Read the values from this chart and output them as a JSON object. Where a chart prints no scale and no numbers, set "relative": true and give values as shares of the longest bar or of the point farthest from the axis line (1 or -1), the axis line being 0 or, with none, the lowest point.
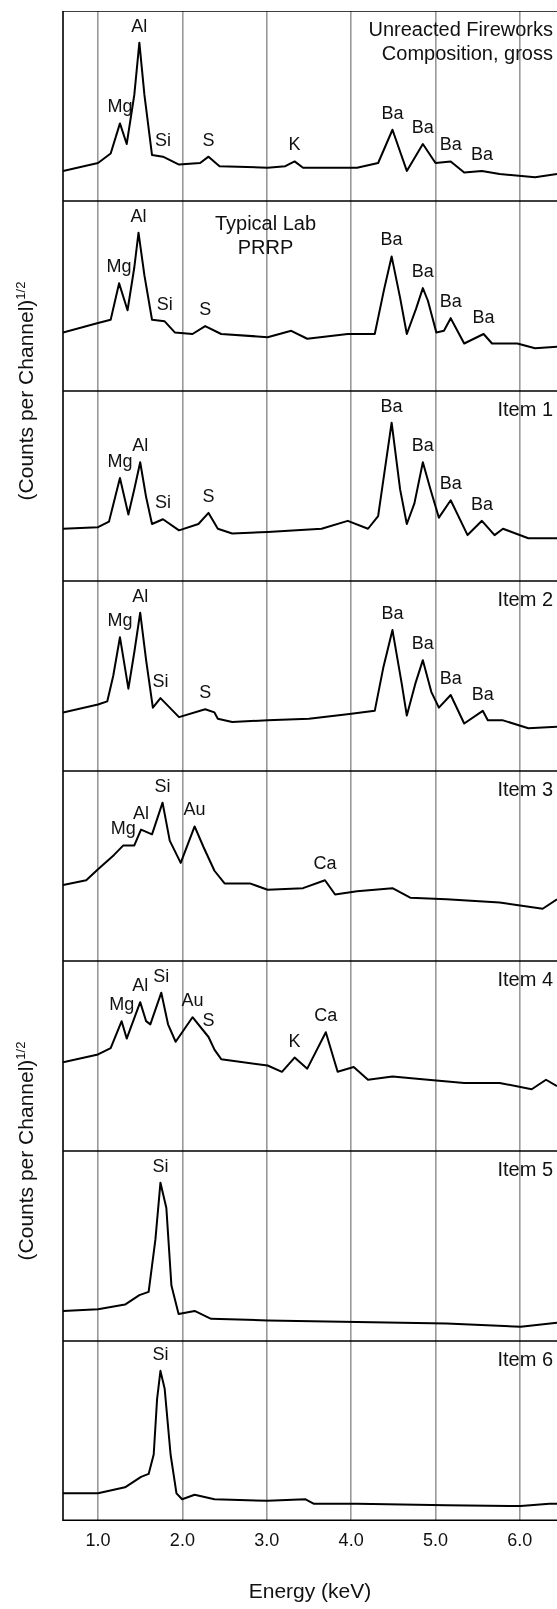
{
  "chart_data": [
    {
      "type": "line",
      "title": "Unreacted Fireworks Composition, gross",
      "relative": true,
      "color": "#000000",
      "grid": "x",
      "tick_labels": false,
      "xlim": [
        0.585,
        6.44
      ],
      "xticks": [
        1,
        2,
        3,
        4,
        5,
        6
      ],
      "x": [
        0.585,
        1.0,
        1.15,
        1.26,
        1.34,
        1.43,
        1.49,
        1.55,
        1.64,
        1.77,
        1.96,
        2.21,
        2.31,
        2.44,
        3.01,
        3.22,
        3.33,
        3.43,
        4.07,
        4.32,
        4.49,
        4.66,
        4.85,
        5.0,
        5.18,
        5.34,
        5.55,
        5.76,
        6.18,
        6.44
      ],
      "values": [
        0.19,
        0.24,
        0.3,
        0.49,
        0.36,
        0.67,
        1.0,
        0.67,
        0.29,
        0.28,
        0.23,
        0.24,
        0.28,
        0.22,
        0.21,
        0.22,
        0.25,
        0.21,
        0.21,
        0.24,
        0.45,
        0.19,
        0.36,
        0.24,
        0.25,
        0.18,
        0.19,
        0.17,
        0.15,
        0.17
      ],
      "annotations": [
        {
          "text": "Mg",
          "x": 1.26,
          "y": 0.49
        },
        {
          "text": "Al",
          "x": 1.49,
          "y": 1.0
        },
        {
          "text": "Si",
          "x": 1.77,
          "y": 0.28
        },
        {
          "text": "S",
          "x": 2.31,
          "y": 0.28
        },
        {
          "text": "K",
          "x": 3.33,
          "y": 0.25
        },
        {
          "text": "Ba",
          "x": 4.49,
          "y": 0.45
        },
        {
          "text": "Ba",
          "x": 4.85,
          "y": 0.36
        },
        {
          "text": "Ba",
          "x": 5.18,
          "y": 0.25
        },
        {
          "text": "Ba",
          "x": 5.55,
          "y": 0.19
        }
      ]
    },
    {
      "type": "line",
      "ylabel": "(Counts per Channel)$^{1/2}$",
      "relative": true,
      "color": "#000000",
      "grid": "x",
      "tick_labels": false,
      "xlim": [
        0.585,
        6.44
      ],
      "xticks": [
        1,
        2,
        3,
        4,
        5,
        6
      ],
      "x": [
        0.585,
        1.0,
        1.15,
        1.25,
        1.35,
        1.43,
        1.48,
        1.55,
        1.64,
        1.79,
        1.91,
        2.12,
        2.27,
        2.46,
        3.01,
        3.29,
        3.48,
        3.96,
        4.28,
        4.39,
        4.48,
        4.58,
        4.66,
        4.77,
        4.85,
        4.91,
        5.01,
        5.1,
        5.18,
        5.34,
        5.57,
        5.67,
        5.97,
        6.18,
        6.44
      ],
      "values": [
        0.37,
        0.43,
        0.45,
        0.68,
        0.51,
        0.78,
        1.0,
        0.73,
        0.45,
        0.44,
        0.37,
        0.36,
        0.41,
        0.36,
        0.34,
        0.38,
        0.33,
        0.36,
        0.36,
        0.64,
        0.85,
        0.59,
        0.36,
        0.52,
        0.65,
        0.57,
        0.37,
        0.38,
        0.46,
        0.3,
        0.36,
        0.3,
        0.3,
        0.27,
        0.28
      ],
      "annotations": [
        "Typical Lab PRRP",
        {
          "text": "Mg",
          "x": 1.25,
          "y": 0.68
        },
        {
          "text": "Al",
          "x": 1.48,
          "y": 1.0
        },
        {
          "text": "Si",
          "x": 1.79,
          "y": 0.44
        },
        {
          "text": "S",
          "x": 2.27,
          "y": 0.41
        },
        {
          "text": "Ba",
          "x": 4.48,
          "y": 0.85
        },
        {
          "text": "Ba",
          "x": 4.85,
          "y": 0.65
        },
        {
          "text": "Ba",
          "x": 5.18,
          "y": 0.46
        },
        {
          "text": "Ba",
          "x": 5.57,
          "y": 0.36
        }
      ]
    },
    {
      "type": "line",
      "title": "Item 1",
      "relative": true,
      "color": "#000000",
      "grid": "x",
      "tick_labels": false,
      "xlim": [
        0.585,
        6.44
      ],
      "xticks": [
        1,
        2,
        3,
        4,
        5,
        6
      ],
      "x": [
        0.585,
        1.0,
        1.13,
        1.26,
        1.36,
        1.43,
        1.5,
        1.57,
        1.64,
        1.77,
        1.96,
        2.19,
        2.31,
        2.42,
        2.59,
        3.01,
        3.65,
        3.96,
        4.2,
        4.32,
        4.48,
        4.58,
        4.66,
        4.75,
        4.85,
        4.94,
        5.04,
        5.18,
        5.38,
        5.55,
        5.7,
        5.8,
        6.1,
        6.44
      ],
      "values": [
        0.33,
        0.34,
        0.375,
        0.65,
        0.42,
        0.58,
        0.75,
        0.53,
        0.36,
        0.39,
        0.32,
        0.36,
        0.43,
        0.33,
        0.3,
        0.31,
        0.33,
        0.38,
        0.33,
        0.41,
        1.0,
        0.58,
        0.36,
        0.49,
        0.75,
        0.58,
        0.4,
        0.51,
        0.29,
        0.38,
        0.29,
        0.33,
        0.27,
        0.27
      ],
      "annotations": [
        {
          "text": "Mg",
          "x": 1.26,
          "y": 0.65
        },
        {
          "text": "Al",
          "x": 1.5,
          "y": 0.75
        },
        {
          "text": "Si",
          "x": 1.77,
          "y": 0.39
        },
        {
          "text": "S",
          "x": 2.31,
          "y": 0.43
        },
        {
          "text": "Ba",
          "x": 4.48,
          "y": 1.0
        },
        {
          "text": "Ba",
          "x": 4.85,
          "y": 0.75
        },
        {
          "text": "Ba",
          "x": 5.18,
          "y": 0.51
        },
        {
          "text": "Ba",
          "x": 5.55,
          "y": 0.38
        }
      ]
    },
    {
      "type": "line",
      "title": "Item 2",
      "relative": true,
      "color": "#000000",
      "grid": "x",
      "tick_labels": false,
      "xlim": [
        0.585,
        6.44
      ],
      "xticks": [
        1,
        2,
        3,
        4,
        5,
        6
      ],
      "x": [
        0.585,
        1.0,
        1.11,
        1.18,
        1.26,
        1.36,
        1.43,
        1.5,
        1.57,
        1.65,
        1.74,
        1.96,
        2.27,
        2.38,
        2.42,
        2.59,
        3.01,
        3.5,
        3.98,
        4.28,
        4.38,
        4.49,
        4.6,
        4.66,
        4.76,
        4.85,
        4.95,
        5.04,
        5.18,
        5.34,
        5.56,
        5.62,
        5.8,
        6.1,
        6.44
      ],
      "values": [
        0.37,
        0.42,
        0.44,
        0.6,
        0.845,
        0.52,
        0.75,
        1.0,
        0.7,
        0.4,
        0.46,
        0.34,
        0.39,
        0.37,
        0.33,
        0.31,
        0.32,
        0.33,
        0.36,
        0.38,
        0.65,
        0.89,
        0.55,
        0.35,
        0.55,
        0.7,
        0.5,
        0.4,
        0.48,
        0.3,
        0.38,
        0.32,
        0.32,
        0.27,
        0.28
      ],
      "annotations": [
        {
          "text": "Mg",
          "x": 1.26,
          "y": 0.845
        },
        {
          "text": "Al",
          "x": 1.5,
          "y": 1.0
        },
        {
          "text": "Si",
          "x": 1.74,
          "y": 0.46
        },
        {
          "text": "S",
          "x": 2.27,
          "y": 0.39
        },
        {
          "text": "Ba",
          "x": 4.49,
          "y": 0.89
        },
        {
          "text": "Ba",
          "x": 4.85,
          "y": 0.7
        },
        {
          "text": "Ba",
          "x": 5.18,
          "y": 0.48
        },
        {
          "text": "Ba",
          "x": 5.56,
          "y": 0.38
        }
      ]
    },
    {
      "type": "line",
      "title": "Item 3",
      "relative": true,
      "color": "#000000",
      "grid": "x",
      "tick_labels": false,
      "xlim": [
        0.585,
        6.44
      ],
      "xticks": [
        1,
        2,
        3,
        4,
        5,
        6
      ],
      "x": [
        0.585,
        0.86,
        1.0,
        1.19,
        1.3,
        1.43,
        1.51,
        1.64,
        1.765,
        1.85,
        1.98,
        2.145,
        2.25,
        2.38,
        2.5,
        2.8,
        3.01,
        3.43,
        3.69,
        3.81,
        4.07,
        4.49,
        4.7,
        5.13,
        5.76,
        6.27,
        6.44
      ],
      "values": [
        0.48,
        0.51,
        0.58,
        0.67,
        0.73,
        0.73,
        0.83,
        0.8,
        1.0,
        0.76,
        0.62,
        0.85,
        0.72,
        0.57,
        0.49,
        0.49,
        0.45,
        0.46,
        0.51,
        0.42,
        0.44,
        0.46,
        0.4,
        0.39,
        0.37,
        0.33,
        0.39
      ],
      "annotations": [
        {
          "text": "Mg",
          "x": 1.3,
          "y": 0.73
        },
        {
          "text": "Al",
          "x": 1.51,
          "y": 0.83
        },
        {
          "text": "Si",
          "x": 1.765,
          "y": 1.0
        },
        {
          "text": "Au",
          "x": 2.145,
          "y": 0.85
        },
        {
          "text": "Ca",
          "x": 3.69,
          "y": 0.51
        }
      ]
    },
    {
      "type": "line",
      "title": "Item 4",
      "ylabel": "(Counts per Channel)$^{1/2}$",
      "relative": true,
      "color": "#000000",
      "grid": "x",
      "tick_labels": false,
      "xlim": [
        0.585,
        6.44
      ],
      "xticks": [
        1,
        2,
        3,
        4,
        5,
        6
      ],
      "x": [
        0.585,
        1.0,
        1.15,
        1.28,
        1.34,
        1.5,
        1.57,
        1.62,
        1.75,
        1.83,
        1.92,
        2.12,
        2.31,
        2.38,
        2.46,
        3.01,
        3.18,
        3.33,
        3.48,
        3.7,
        3.84,
        4.03,
        4.2,
        4.49,
        4.91,
        5.34,
        5.76,
        6.14,
        6.31,
        6.44
      ],
      "values": [
        0.56,
        0.61,
        0.65,
        0.82,
        0.71,
        0.94,
        0.82,
        0.8,
        1.0,
        0.8,
        0.69,
        0.845,
        0.72,
        0.64,
        0.58,
        0.54,
        0.5,
        0.59,
        0.52,
        0.75,
        0.5,
        0.53,
        0.45,
        0.47,
        0.45,
        0.43,
        0.43,
        0.39,
        0.45,
        0.41
      ],
      "annotations": [
        {
          "text": "Mg",
          "x": 1.28,
          "y": 0.82
        },
        {
          "text": "Al",
          "x": 1.5,
          "y": 0.94
        },
        {
          "text": "Si",
          "x": 1.75,
          "y": 1.0
        },
        {
          "text": "Au",
          "x": 2.12,
          "y": 0.845
        },
        {
          "text": "S",
          "x": 2.31,
          "y": 0.72
        },
        {
          "text": "K",
          "x": 3.33,
          "y": 0.59
        },
        {
          "text": "Ca",
          "x": 3.7,
          "y": 0.75
        }
      ]
    },
    {
      "type": "line",
      "title": "Item 5",
      "relative": true,
      "color": "#000000",
      "grid": "x",
      "tick_labels": false,
      "xlim": [
        0.585,
        6.44
      ],
      "xticks": [
        1,
        2,
        3,
        4,
        5,
        6
      ],
      "x": [
        0.585,
        1.0,
        1.32,
        1.49,
        1.6,
        1.68,
        1.74,
        1.81,
        1.87,
        1.955,
        2.145,
        2.34,
        3.01,
        4.07,
        5.13,
        6.01,
        6.44
      ],
      "values": [
        0.19,
        0.2,
        0.23,
        0.29,
        0.31,
        0.64,
        1.0,
        0.84,
        0.35,
        0.17,
        0.19,
        0.14,
        0.13,
        0.12,
        0.11,
        0.09,
        0.115
      ],
      "annotations": [
        {
          "text": "Si",
          "x": 1.74,
          "y": 1.0
        }
      ]
    },
    {
      "type": "line",
      "title": "Item 6",
      "xlabel": "Energy (keV)",
      "relative": true,
      "color": "#000000",
      "grid": "x",
      "tick_labels": "x",
      "xlim": [
        0.585,
        6.44
      ],
      "xticks": [
        {
          "value": 1,
          "label": "1.0"
        },
        {
          "value": 2,
          "label": "2.0"
        },
        {
          "value": 3,
          "label": "3.0"
        },
        {
          "value": 4,
          "label": "4.0"
        },
        {
          "value": 5,
          "label": "5.0"
        },
        {
          "value": 6,
          "label": "6.0"
        }
      ],
      "x": [
        0.585,
        1.0,
        1.32,
        1.51,
        1.6,
        1.66,
        1.7,
        1.74,
        1.79,
        1.86,
        1.93,
        1.997,
        2.145,
        2.38,
        3.01,
        3.46,
        3.56,
        4.07,
        5.13,
        6.01,
        6.35,
        6.44
      ],
      "values": [
        0.18,
        0.18,
        0.22,
        0.29,
        0.31,
        0.44,
        0.81,
        1.0,
        0.88,
        0.44,
        0.18,
        0.14,
        0.17,
        0.14,
        0.13,
        0.14,
        0.11,
        0.11,
        0.1,
        0.095,
        0.11,
        0.11
      ],
      "annotations": [
        {
          "text": "Si",
          "x": 1.74,
          "y": 1.0
        }
      ]
    }
  ]
}
